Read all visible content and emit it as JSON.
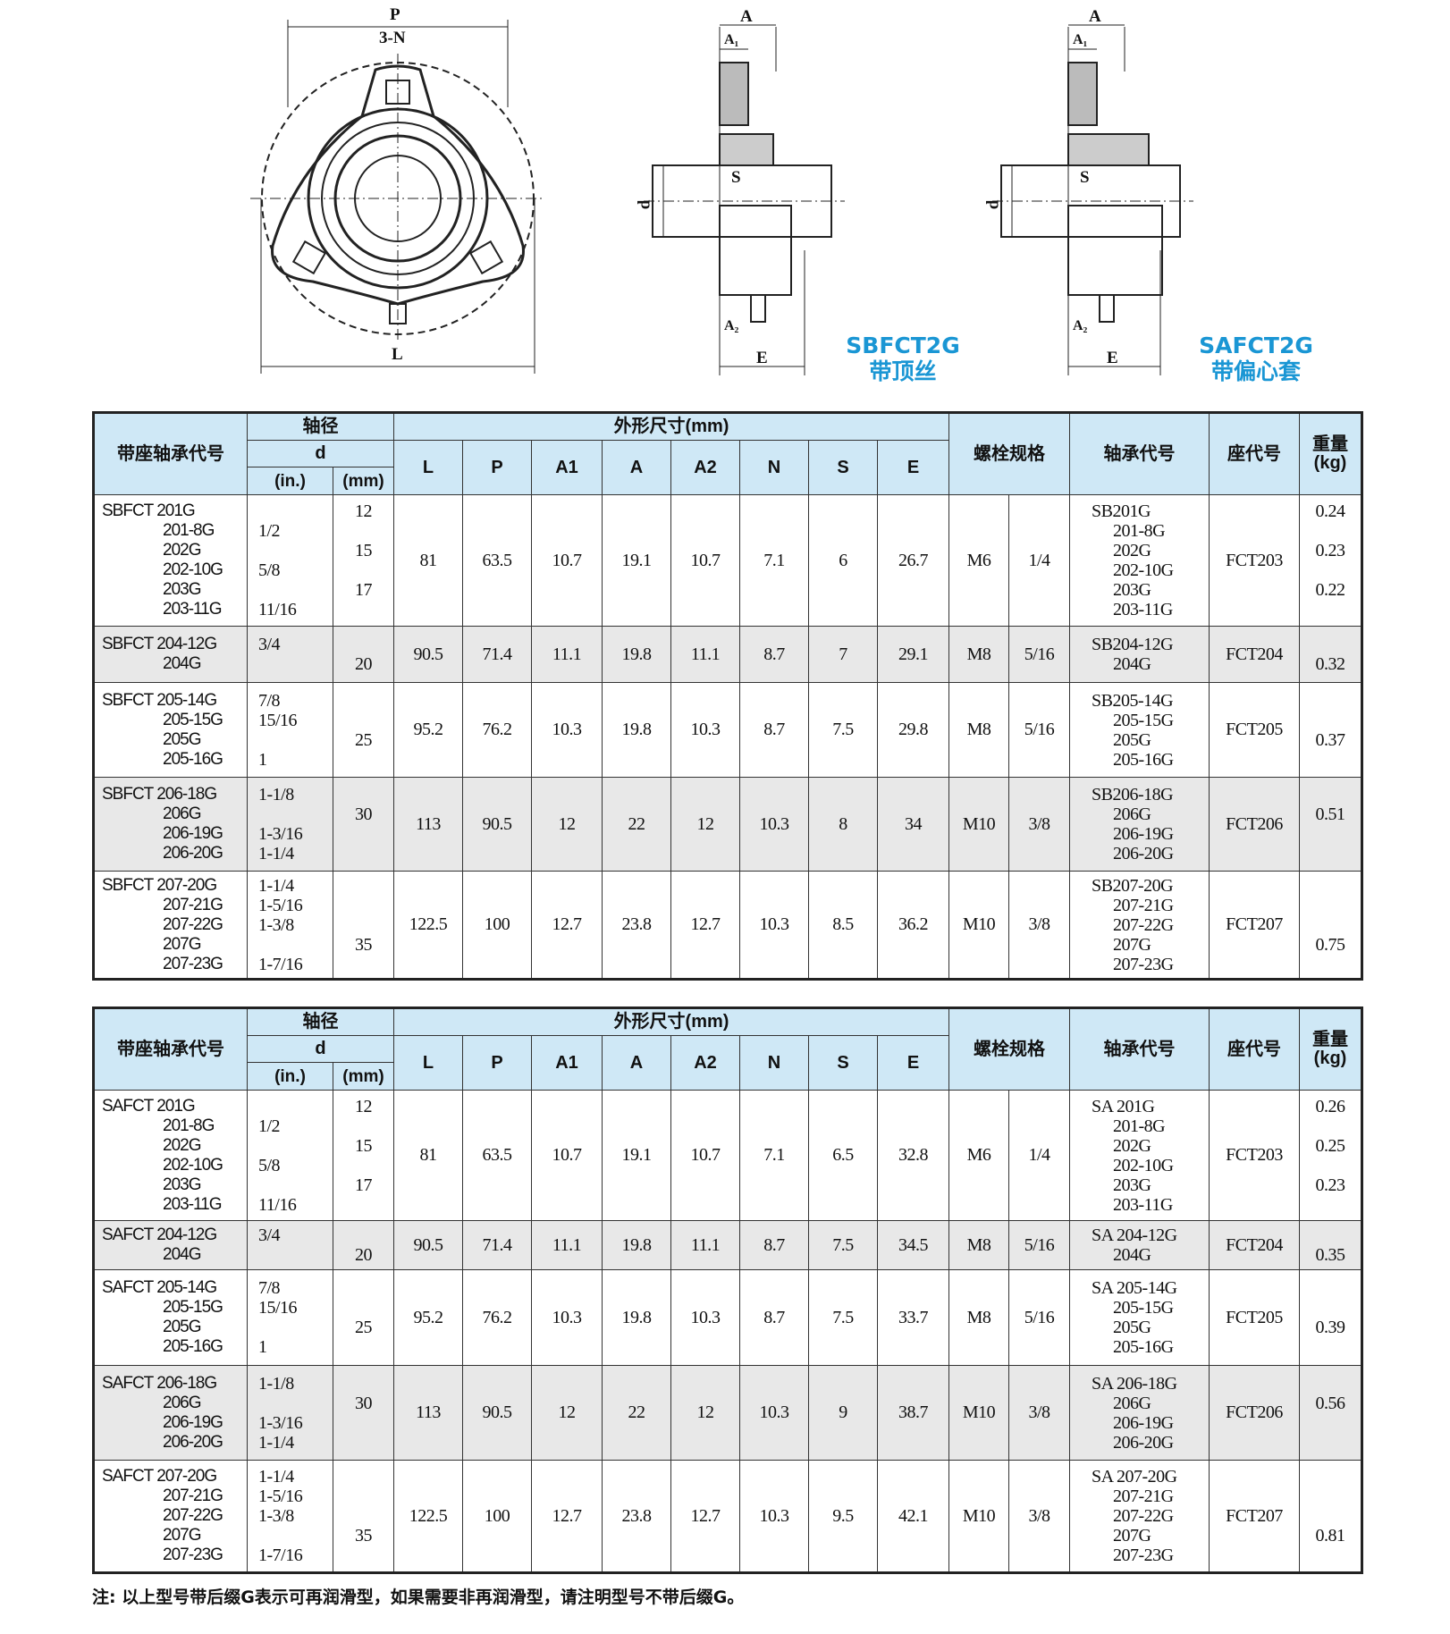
{
  "drawings": {
    "front": {
      "P": "P",
      "N": "3-N",
      "L": "L"
    },
    "section1": {
      "A": "A",
      "A1": "A₁",
      "d": "d",
      "S": "S",
      "A2": "A₂",
      "E": "E",
      "model": "SBFCT2G",
      "desc": "带顶丝"
    },
    "section2": {
      "A": "A",
      "A1": "A₁",
      "d": "d",
      "S": "S",
      "A2": "A₂",
      "E": "E",
      "model": "SAFCT2G",
      "desc": "带偏心套"
    }
  },
  "header": {
    "model": "带座轴承代号",
    "shaft": "轴径",
    "d": "d",
    "in": "(in.)",
    "mm": "(mm)",
    "dims": "外形尺寸(mm)",
    "cols": [
      "L",
      "P",
      "A1",
      "A",
      "A2",
      "N",
      "S",
      "E"
    ],
    "bolt": "螺栓规格",
    "bearing": "轴承代号",
    "seat": "座代号",
    "weight": "重量(kg)"
  },
  "tables": [
    {
      "rows": [
        {
          "model": [
            "SBFCT 201G",
            "201-8G",
            "202G",
            "202-10G",
            "203G",
            "203-11G"
          ],
          "in": [
            "",
            "1/2",
            "",
            "5/8",
            "",
            "11/16"
          ],
          "mm": [
            "12",
            "",
            "15",
            "",
            "17",
            ""
          ],
          "dims": [
            "81",
            "63.5",
            "10.7",
            "19.1",
            "10.7",
            "7.1",
            "6",
            "26.7"
          ],
          "bolt": "M6",
          "bolt_in": "1/4",
          "bearing": [
            "SB201G",
            "201-8G",
            "202G",
            "202-10G",
            "203G",
            "203-11G"
          ],
          "seat": "FCT203",
          "weight": [
            "0.24",
            "",
            "0.23",
            "",
            "0.22",
            ""
          ]
        },
        {
          "model": [
            "SBFCT 204-12G",
            "204G"
          ],
          "in": [
            "3/4",
            ""
          ],
          "mm": [
            "",
            "20"
          ],
          "dims": [
            "90.5",
            "71.4",
            "11.1",
            "19.8",
            "11.1",
            "8.7",
            "7",
            "29.1"
          ],
          "bolt": "M8",
          "bolt_in": "5/16",
          "bearing": [
            "SB204-12G",
            "204G"
          ],
          "seat": "FCT204",
          "weight": [
            "",
            "0.32"
          ]
        },
        {
          "model": [
            "SBFCT 205-14G",
            "205-15G",
            "205G",
            "205-16G"
          ],
          "in": [
            "7/8",
            "15/16",
            "",
            "1"
          ],
          "mm": [
            "",
            "",
            "25",
            ""
          ],
          "dims": [
            "95.2",
            "76.2",
            "10.3",
            "19.8",
            "10.3",
            "8.7",
            "7.5",
            "29.8"
          ],
          "bolt": "M8",
          "bolt_in": "5/16",
          "bearing": [
            "SB205-14G",
            "205-15G",
            "205G",
            "205-16G"
          ],
          "seat": "FCT205",
          "weight": [
            "",
            "",
            "0.37",
            ""
          ]
        },
        {
          "model": [
            "SBFCT 206-18G",
            "206G",
            "206-19G",
            "206-20G"
          ],
          "in": [
            "1-1/8",
            "",
            "1-3/16",
            "1-1/4"
          ],
          "mm": [
            "",
            "30",
            "",
            ""
          ],
          "dims": [
            "113",
            "90.5",
            "12",
            "22",
            "12",
            "10.3",
            "8",
            "34"
          ],
          "bolt": "M10",
          "bolt_in": "3/8",
          "bearing": [
            "SB206-18G",
            "206G",
            "206-19G",
            "206-20G"
          ],
          "seat": "FCT206",
          "weight": [
            "",
            "0.51",
            "",
            ""
          ]
        },
        {
          "model": [
            "SBFCT 207-20G",
            "207-21G",
            "207-22G",
            "207G",
            "207-23G"
          ],
          "in": [
            "1-1/4",
            "1-5/16",
            "1-3/8",
            "",
            "1-7/16"
          ],
          "mm": [
            "",
            "",
            "",
            "35",
            ""
          ],
          "dims": [
            "122.5",
            "100",
            "12.7",
            "23.8",
            "12.7",
            "10.3",
            "8.5",
            "36.2"
          ],
          "bolt": "M10",
          "bolt_in": "3/8",
          "bearing": [
            "SB207-20G",
            "207-21G",
            "207-22G",
            "207G",
            "207-23G"
          ],
          "seat": "FCT207",
          "weight": [
            "",
            "",
            "",
            "0.75",
            ""
          ]
        }
      ]
    },
    {
      "rows": [
        {
          "model": [
            "SAFCT 201G",
            "201-8G",
            "202G",
            "202-10G",
            "203G",
            "203-11G"
          ],
          "in": [
            "",
            "1/2",
            "",
            "5/8",
            "",
            "11/16"
          ],
          "mm": [
            "12",
            "",
            "15",
            "",
            "17",
            ""
          ],
          "dims": [
            "81",
            "63.5",
            "10.7",
            "19.1",
            "10.7",
            "7.1",
            "6.5",
            "32.8"
          ],
          "bolt": "M6",
          "bolt_in": "1/4",
          "bearing": [
            "SA 201G",
            "201-8G",
            "202G",
            "202-10G",
            "203G",
            "203-11G"
          ],
          "seat": "FCT203",
          "weight": [
            "0.26",
            "",
            "0.25",
            "",
            "0.23",
            ""
          ]
        },
        {
          "model": [
            "SAFCT 204-12G",
            "204G"
          ],
          "in": [
            "3/4",
            ""
          ],
          "mm": [
            "",
            "20"
          ],
          "dims": [
            "90.5",
            "71.4",
            "11.1",
            "19.8",
            "11.1",
            "8.7",
            "7.5",
            "34.5"
          ],
          "bolt": "M8",
          "bolt_in": "5/16",
          "bearing": [
            "SA 204-12G",
            "204G"
          ],
          "seat": "FCT204",
          "weight": [
            "",
            "0.35"
          ]
        },
        {
          "model": [
            "SAFCT 205-14G",
            "205-15G",
            "205G",
            "205-16G"
          ],
          "in": [
            "7/8",
            "15/16",
            "",
            "1"
          ],
          "mm": [
            "",
            "",
            "25",
            ""
          ],
          "dims": [
            "95.2",
            "76.2",
            "10.3",
            "19.8",
            "10.3",
            "8.7",
            "7.5",
            "33.7"
          ],
          "bolt": "M8",
          "bolt_in": "5/16",
          "bearing": [
            "SA 205-14G",
            "205-15G",
            "205G",
            "205-16G"
          ],
          "seat": "FCT205",
          "weight": [
            "",
            "",
            "0.39",
            ""
          ]
        },
        {
          "model": [
            "SAFCT 206-18G",
            "206G",
            "206-19G",
            "206-20G"
          ],
          "in": [
            "1-1/8",
            "",
            "1-3/16",
            "1-1/4"
          ],
          "mm": [
            "",
            "30",
            "",
            ""
          ],
          "dims": [
            "113",
            "90.5",
            "12",
            "22",
            "12",
            "10.3",
            "9",
            "38.7"
          ],
          "bolt": "M10",
          "bolt_in": "3/8",
          "bearing": [
            "SA 206-18G",
            "206G",
            "206-19G",
            "206-20G"
          ],
          "seat": "FCT206",
          "weight": [
            "",
            "0.56",
            "",
            ""
          ]
        },
        {
          "model": [
            "SAFCT 207-20G",
            "207-21G",
            "207-22G",
            "207G",
            "207-23G"
          ],
          "in": [
            "1-1/4",
            "1-5/16",
            "1-3/8",
            "",
            "1-7/16"
          ],
          "mm": [
            "",
            "",
            "",
            "35",
            ""
          ],
          "dims": [
            "122.5",
            "100",
            "12.7",
            "23.8",
            "12.7",
            "10.3",
            "9.5",
            "42.1"
          ],
          "bolt": "M10",
          "bolt_in": "3/8",
          "bearing": [
            "SA 207-20G",
            "207-21G",
            "207-22G",
            "207G",
            "207-23G"
          ],
          "seat": "FCT207",
          "weight": [
            "",
            "",
            "",
            "0.81",
            ""
          ]
        }
      ]
    }
  ],
  "note": "注:  以上型号带后缀G表示可再润滑型，如果需要非再润滑型，请注明型号不带后缀G。",
  "colors": {
    "header_bg": "#cfe8f6",
    "alt_row": "#e8e8e8",
    "title_blue": "#1a96d4"
  }
}
